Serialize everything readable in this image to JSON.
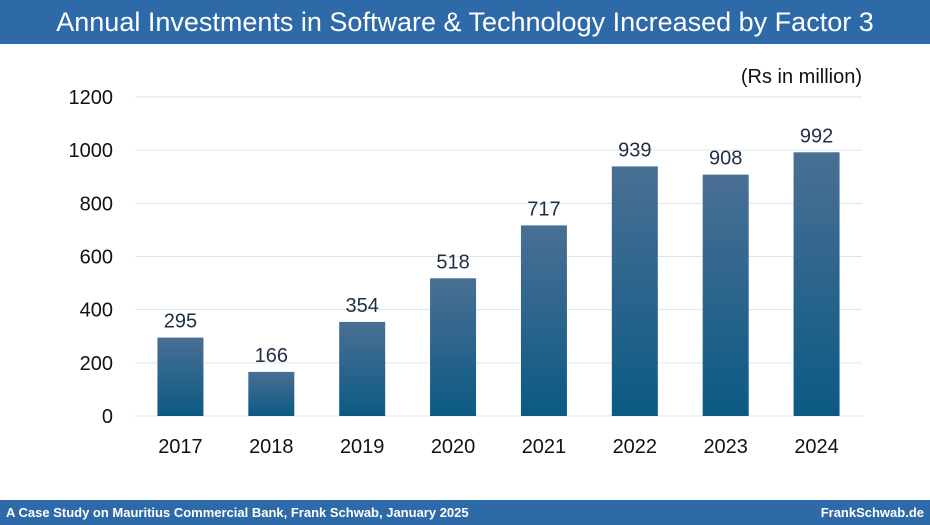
{
  "title": "Annual Investments in Software & Technology Increased by Factor 3",
  "unit_label": "(Rs in million)",
  "footer": {
    "left": "A Case Study on Mauritius Commercial Bank, Frank Schwab, January 2025",
    "right": "FrankSchwab.de"
  },
  "colors": {
    "header_bg": "#2e6aa7",
    "bar_top": "#4a6f94",
    "bar_bottom": "#0b5a84",
    "grid": "#d7e6ef"
  },
  "chart_data": {
    "type": "bar",
    "title": "Annual Investments in Software & Technology Increased by Factor 3",
    "ylabel": "(Rs in million)",
    "categories": [
      "2017",
      "2018",
      "2019",
      "2020",
      "2021",
      "2022",
      "2023",
      "2024"
    ],
    "values": [
      295,
      166,
      354,
      518,
      717,
      939,
      908,
      992
    ],
    "ylim": [
      0,
      1200
    ],
    "yticks": [
      0,
      200,
      400,
      600,
      800,
      1000,
      1200
    ],
    "grid": true,
    "data_labels": true
  }
}
